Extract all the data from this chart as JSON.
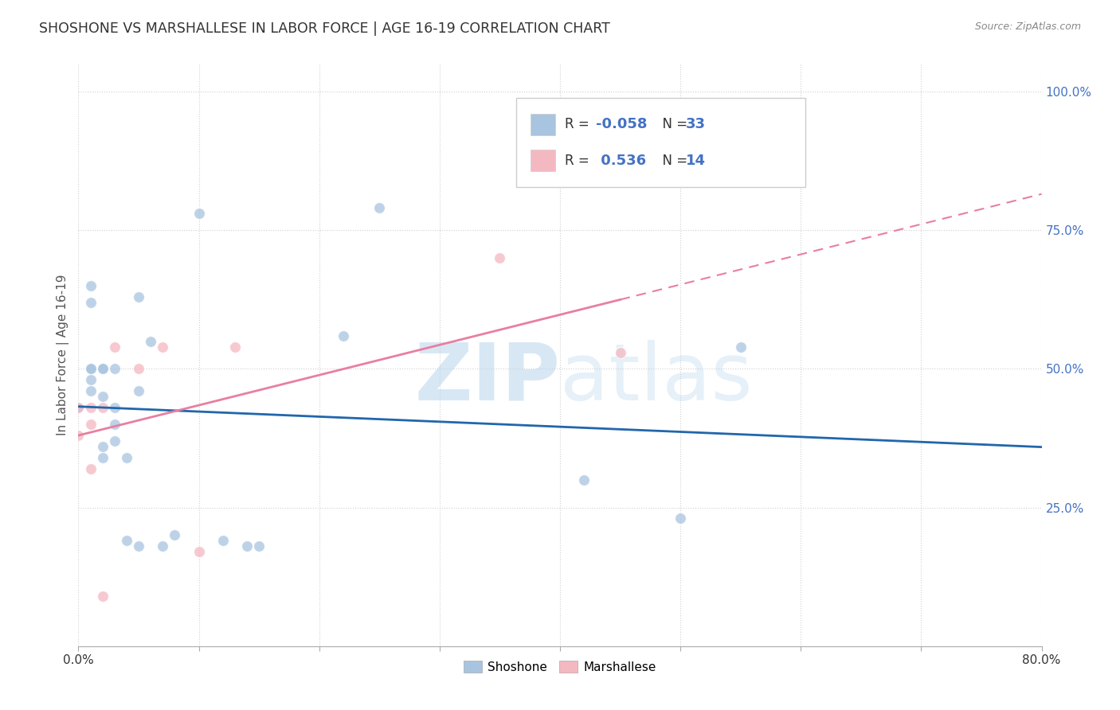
{
  "title": "SHOSHONE VS MARSHALLESE IN LABOR FORCE | AGE 16-19 CORRELATION CHART",
  "source": "Source: ZipAtlas.com",
  "ylabel": "In Labor Force | Age 16-19",
  "xlim": [
    0.0,
    0.8
  ],
  "ylim": [
    0.0,
    1.05
  ],
  "xtick_labels_ends": [
    "0.0%",
    "80.0%"
  ],
  "xtick_values": [
    0.0,
    0.1,
    0.2,
    0.3,
    0.4,
    0.5,
    0.6,
    0.7,
    0.8
  ],
  "ytick_labels_right": [
    "100.0%",
    "75.0%",
    "50.0%",
    "25.0%"
  ],
  "ytick_values_right": [
    1.0,
    0.75,
    0.5,
    0.25
  ],
  "shoshone_color": "#a8c4e0",
  "marshallese_color": "#f4b8c1",
  "shoshone_line_color": "#2166ac",
  "marshallese_line_color": "#e87fa0",
  "shoshone_R": -0.058,
  "shoshone_N": 33,
  "marshallese_R": 0.536,
  "marshallese_N": 14,
  "legend_value_color": "#4472c4",
  "shoshone_x": [
    0.0,
    0.01,
    0.01,
    0.01,
    0.01,
    0.01,
    0.01,
    0.02,
    0.02,
    0.02,
    0.02,
    0.02,
    0.03,
    0.03,
    0.03,
    0.03,
    0.04,
    0.04,
    0.05,
    0.05,
    0.05,
    0.06,
    0.07,
    0.08,
    0.1,
    0.12,
    0.14,
    0.15,
    0.22,
    0.25,
    0.42,
    0.5,
    0.55
  ],
  "shoshone_y": [
    0.43,
    0.65,
    0.62,
    0.48,
    0.5,
    0.5,
    0.46,
    0.5,
    0.5,
    0.45,
    0.36,
    0.34,
    0.5,
    0.43,
    0.4,
    0.37,
    0.34,
    0.19,
    0.63,
    0.46,
    0.18,
    0.55,
    0.18,
    0.2,
    0.78,
    0.19,
    0.18,
    0.18,
    0.56,
    0.79,
    0.3,
    0.23,
    0.54
  ],
  "marshallese_x": [
    0.0,
    0.0,
    0.01,
    0.01,
    0.01,
    0.02,
    0.02,
    0.03,
    0.05,
    0.07,
    0.1,
    0.13,
    0.35,
    0.45
  ],
  "marshallese_y": [
    0.43,
    0.38,
    0.43,
    0.4,
    0.32,
    0.09,
    0.43,
    0.54,
    0.5,
    0.54,
    0.17,
    0.54,
    0.7,
    0.53
  ],
  "watermark_zip": "ZIP",
  "watermark_atlas": "atlas",
  "background_color": "#ffffff",
  "grid_color": "#d0d0d0",
  "dot_size": 100,
  "dot_alpha": 0.75,
  "dot_edge_color": "white",
  "dot_edge_width": 0.8
}
